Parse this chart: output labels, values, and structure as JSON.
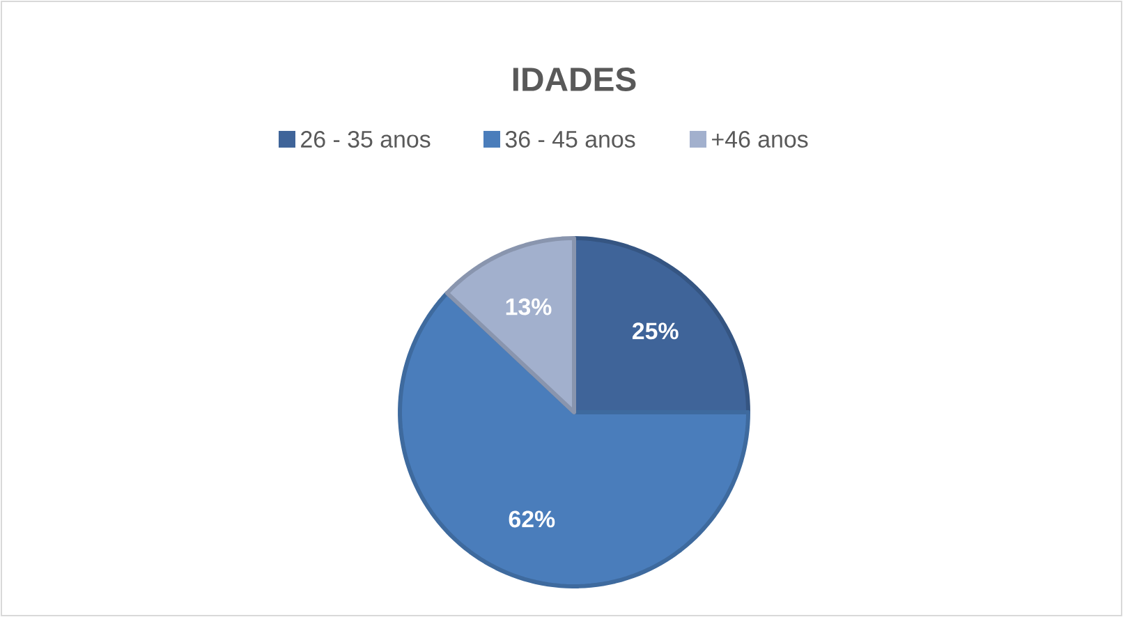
{
  "chart_data": {
    "type": "pie",
    "title": "IDADES",
    "categories": [
      "26 - 35 anos",
      "36 - 45 anos",
      "+46 anos"
    ],
    "values": [
      25,
      62,
      13
    ],
    "value_labels": [
      "25%",
      "62%",
      "13%"
    ],
    "colors": [
      "#3f6499",
      "#4a7dbb",
      "#a2b0cd"
    ],
    "legend": "top"
  }
}
